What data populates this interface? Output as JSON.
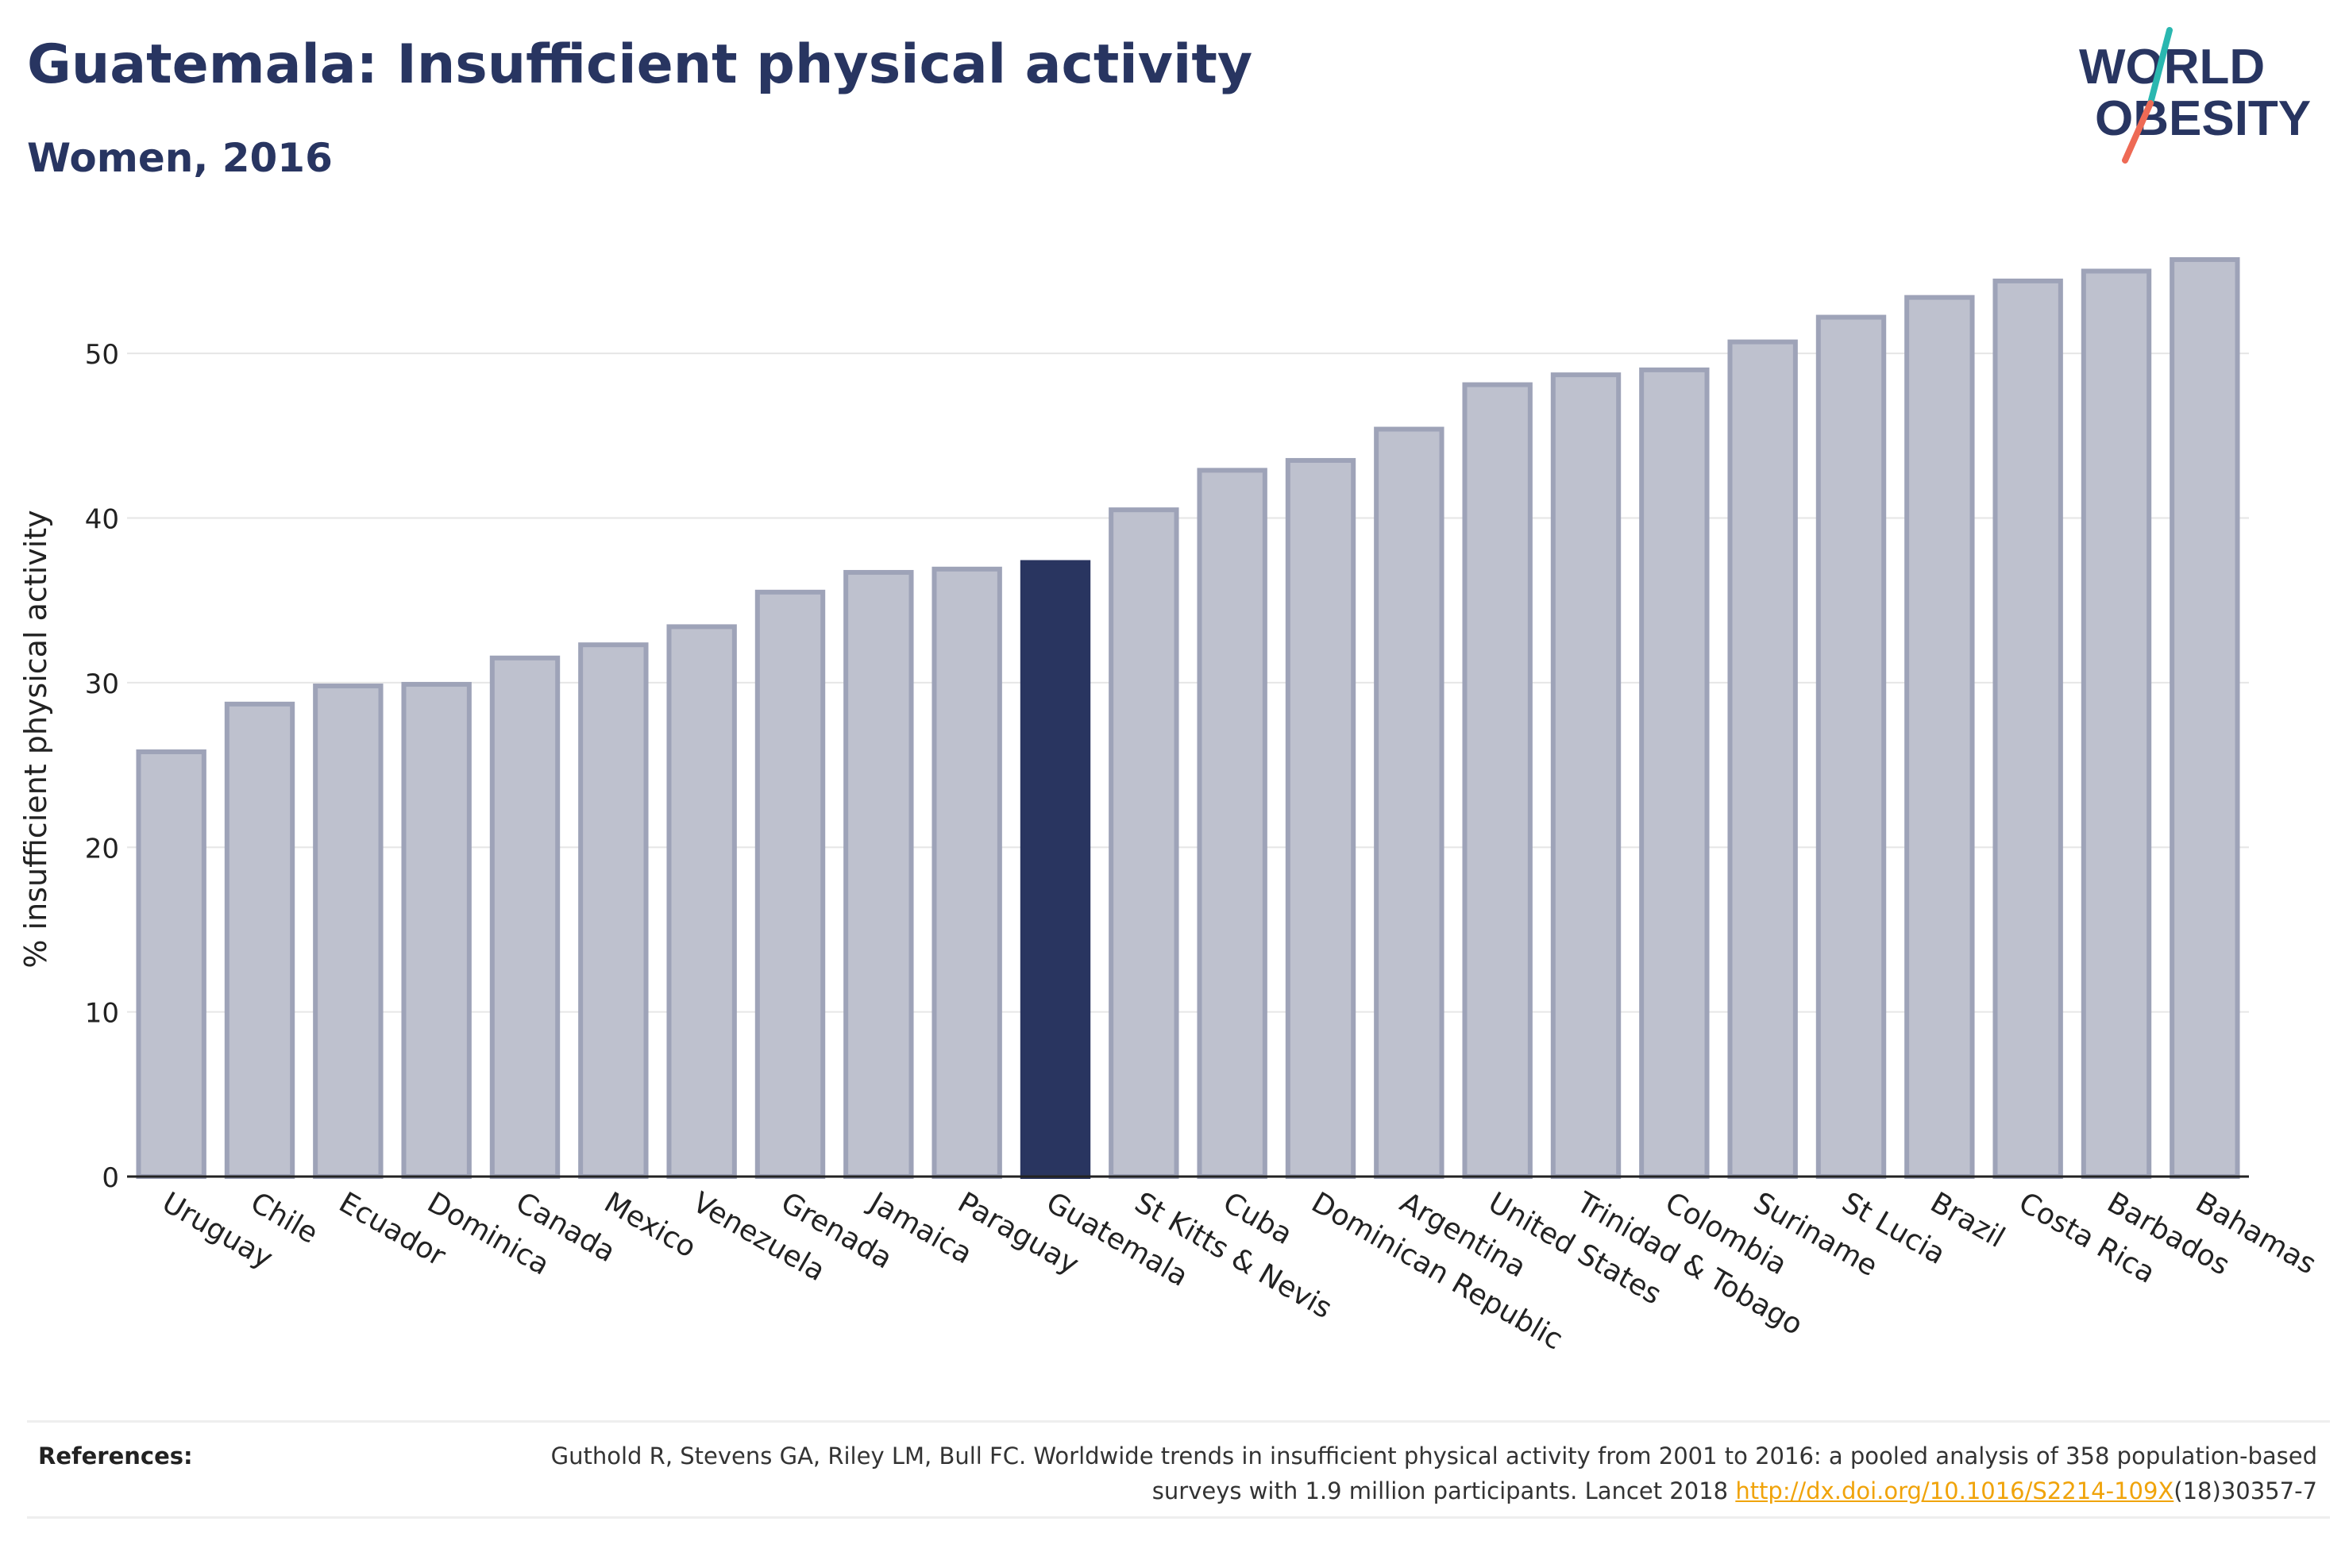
{
  "header": {
    "title": "Guatemala: Insufficient physical activity",
    "subtitle": "Women, 2016"
  },
  "logo": {
    "line1": "WORLD",
    "line2": "OBESITY",
    "colors": {
      "text": "#283561",
      "slash_teal": "#2ab7b0",
      "slash_coral": "#ee6a55"
    }
  },
  "colors": {
    "bar_fill": "#bec1ce",
    "bar_stroke": "#9ea3b8",
    "highlight": "#293560",
    "grid": "#e6e6e6",
    "axis": "#222222"
  },
  "chart_data": {
    "type": "bar",
    "xlabel": "",
    "ylabel": "% insufficient physical activity",
    "ylim": [
      0,
      57
    ],
    "yticks": [
      0,
      10,
      20,
      30,
      40,
      50
    ],
    "grid": true,
    "highlight": "Guatemala",
    "categories": [
      "Uruguay",
      "Chile",
      "Ecuador",
      "Dominica",
      "Canada",
      "Mexico",
      "Venezuela",
      "Grenada",
      "Jamaica",
      "Paraguay",
      "Guatemala",
      "St Kitts & Nevis",
      "Cuba",
      "Dominican Republic",
      "Argentina",
      "United States",
      "Trinidad & Tobago",
      "Colombia",
      "Suriname",
      "St Lucia",
      "Brazil",
      "Costa Rica",
      "Barbados",
      "Bahamas"
    ],
    "values": [
      25.8,
      28.7,
      29.8,
      29.9,
      31.5,
      32.3,
      33.4,
      35.5,
      36.7,
      36.9,
      37.3,
      40.5,
      42.9,
      43.5,
      45.4,
      48.1,
      48.7,
      49.0,
      50.7,
      52.2,
      53.4,
      54.4,
      55.0,
      55.7
    ]
  },
  "references": {
    "label": "References:",
    "text_before": "Guthold R, Stevens GA, Riley LM, Bull FC. Worldwide trends in insufficient physical activity from 2001 to 2016: a pooled analysis of 358 population-based surveys with 1.9 million participants. Lancet 2018 ",
    "link": "http://dx.doi.org/10.1016/S2214-109X",
    "text_after": "(18)30357-7"
  }
}
